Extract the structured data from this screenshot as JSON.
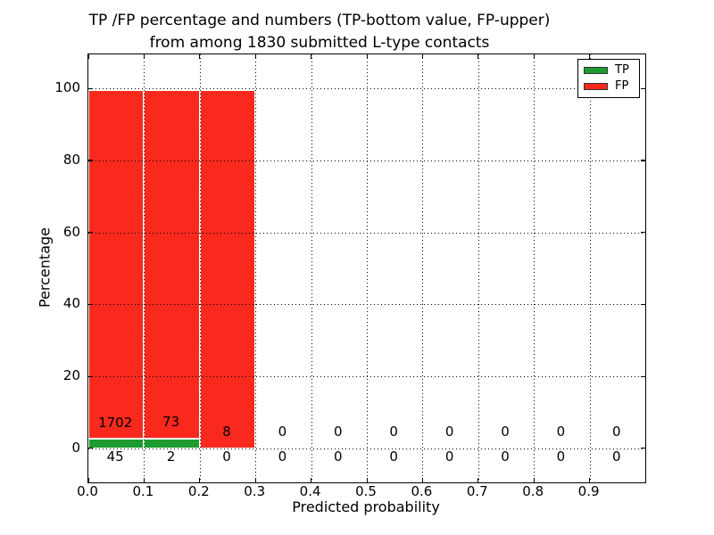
{
  "figure": {
    "title_line1": "TP /FP percentage and numbers (TP-bottom value, FP-upper)",
    "title_line2": "from among 1830 submitted L-type contacts"
  },
  "chart_data": {
    "type": "bar",
    "stacked": true,
    "title": "TP /FP percentage and numbers (TP-bottom value, FP-upper) from among 1830 submitted L-type contacts",
    "xlabel": "Predicted probability",
    "ylabel": "Percentage",
    "xlim": [
      0.0,
      1.0
    ],
    "ylim": [
      -9.5,
      109.5
    ],
    "xticks": [
      0.0,
      0.1,
      0.2,
      0.3,
      0.4,
      0.5,
      0.6,
      0.7,
      0.8,
      0.9
    ],
    "xtick_labels": [
      "0.0",
      "0.1",
      "0.2",
      "0.3",
      "0.4",
      "0.5",
      "0.6",
      "0.7",
      "0.8",
      "0.9"
    ],
    "yticks": [
      0,
      20,
      40,
      60,
      80,
      100
    ],
    "ytick_labels": [
      "0",
      "20",
      "40",
      "60",
      "80",
      "100"
    ],
    "grid": "dotted",
    "bin_width": 0.1,
    "bin_starts": [
      0.0,
      0.1,
      0.2,
      0.3,
      0.4,
      0.5,
      0.6,
      0.7,
      0.8,
      0.9
    ],
    "percent_basis": "each bar stacked to 100% of bin total; bars only drawn for non-empty bins",
    "series": [
      {
        "name": "TP",
        "color": "#1d9b2e",
        "counts": [
          45,
          2,
          0,
          0,
          0,
          0,
          0,
          0,
          0,
          0
        ]
      },
      {
        "name": "FP",
        "color": "#f9291d",
        "counts": [
          1702,
          73,
          8,
          0,
          0,
          0,
          0,
          0,
          0,
          0
        ]
      }
    ],
    "total_contacts": 1830,
    "legend": {
      "position": "upper right",
      "entries": [
        "TP",
        "FP"
      ]
    },
    "annotation_note": "FP count printed above 0-line at each bin center, TP count printed below 0-line"
  }
}
